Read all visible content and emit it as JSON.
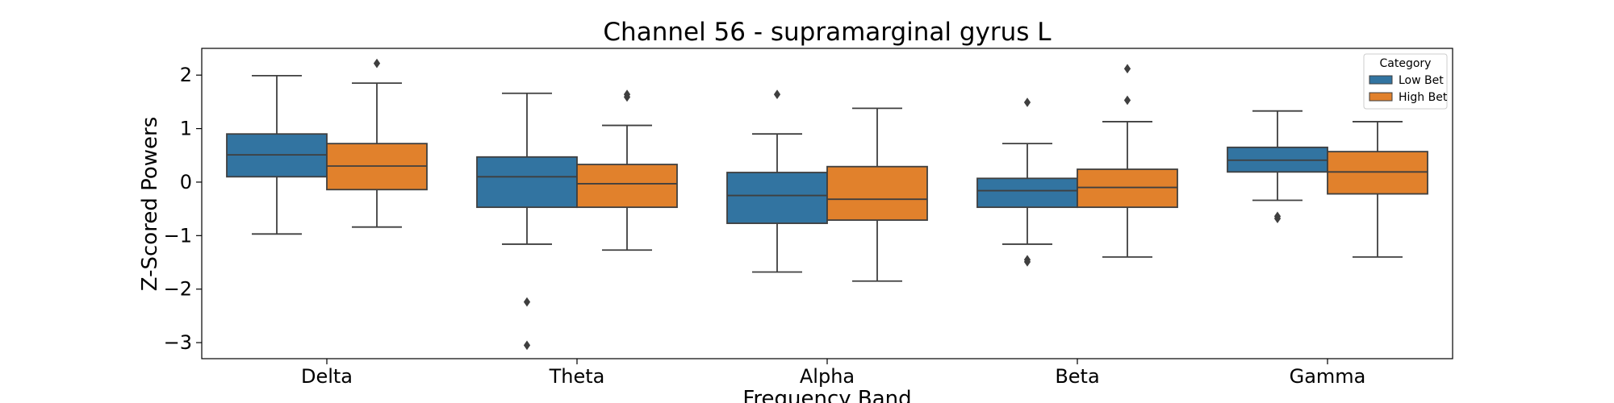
{
  "chart_data": {
    "type": "box",
    "title": "Channel 56 - supramarginal gyrus L",
    "xlabel": "Frequency Band",
    "ylabel": "Z-Scored Powers",
    "ylim": [
      -3.3,
      2.5
    ],
    "yticks": [
      2,
      1,
      0,
      -1,
      -2,
      -3
    ],
    "ytick_labels": [
      "2",
      "1",
      "0",
      "−1",
      "−2",
      "−3"
    ],
    "categories": [
      "Delta",
      "Theta",
      "Alpha",
      "Beta",
      "Gamma"
    ],
    "legend": {
      "title": "Category",
      "position": "top-right"
    },
    "series": [
      {
        "name": "Low Bet",
        "color": "#3274a1",
        "boxes": [
          {
            "whisker_low": -0.97,
            "q1": 0.1,
            "median": 0.51,
            "q3": 0.9,
            "whisker_high": 1.99,
            "outliers": []
          },
          {
            "whisker_low": -1.16,
            "q1": -0.47,
            "median": 0.1,
            "q3": 0.47,
            "whisker_high": 1.66,
            "outliers": [
              -2.24,
              -3.05
            ]
          },
          {
            "whisker_low": -1.68,
            "q1": -0.77,
            "median": -0.25,
            "q3": 0.18,
            "whisker_high": 0.9,
            "outliers": [
              1.64
            ]
          },
          {
            "whisker_low": -1.16,
            "q1": -0.47,
            "median": -0.16,
            "q3": 0.07,
            "whisker_high": 0.72,
            "outliers": [
              1.49,
              -1.45,
              -1.49
            ]
          },
          {
            "whisker_low": -0.34,
            "q1": 0.19,
            "median": 0.41,
            "q3": 0.65,
            "whisker_high": 1.33,
            "outliers": [
              -0.64,
              -0.68
            ]
          }
        ]
      },
      {
        "name": "High Bet",
        "color": "#e1812c",
        "boxes": [
          {
            "whisker_low": -0.84,
            "q1": -0.14,
            "median": 0.3,
            "q3": 0.72,
            "whisker_high": 1.85,
            "outliers": [
              2.22
            ]
          },
          {
            "whisker_low": -1.27,
            "q1": -0.47,
            "median": -0.03,
            "q3": 0.33,
            "whisker_high": 1.06,
            "outliers": [
              1.59,
              1.64
            ]
          },
          {
            "whisker_low": -1.85,
            "q1": -0.71,
            "median": -0.32,
            "q3": 0.29,
            "whisker_high": 1.38,
            "outliers": []
          },
          {
            "whisker_low": -1.4,
            "q1": -0.47,
            "median": -0.1,
            "q3": 0.24,
            "whisker_high": 1.13,
            "outliers": [
              2.12,
              1.53
            ]
          },
          {
            "whisker_low": -1.4,
            "q1": -0.22,
            "median": 0.19,
            "q3": 0.57,
            "whisker_high": 1.13,
            "outliers": []
          }
        ]
      }
    ]
  }
}
